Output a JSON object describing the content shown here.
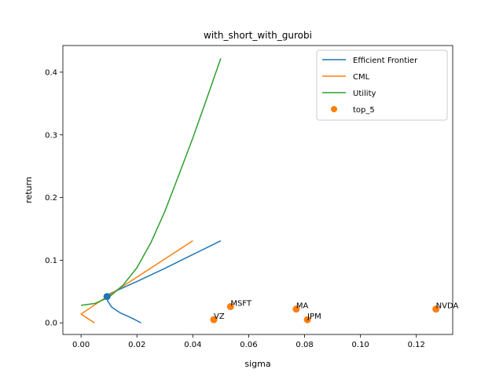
{
  "chart_data": {
    "type": "line",
    "title": "with_short_with_gurobi",
    "xlabel": "sigma",
    "ylabel": "return",
    "xlim": [
      -0.0065,
      0.133
    ],
    "ylim": [
      -0.0185,
      0.4425
    ],
    "xticks": [
      0.0,
      0.02,
      0.04,
      0.06,
      0.08,
      0.1,
      0.12
    ],
    "xtick_labels": [
      "0.00",
      "0.02",
      "0.04",
      "0.06",
      "0.08",
      "0.10",
      "0.12"
    ],
    "yticks": [
      0.0,
      0.1,
      0.2,
      0.3,
      0.4
    ],
    "ytick_labels": [
      "0.0",
      "0.1",
      "0.2",
      "0.3",
      "0.4"
    ],
    "grid": false,
    "legend_position": "top-right",
    "colors": {
      "efficient_frontier": "#1f77b4",
      "cml": "#ff7f0e",
      "utility": "#2ca02c",
      "top_5": "#ff7f0e",
      "tangency": "#1f77b4"
    },
    "series": [
      {
        "name": "Efficient Frontier",
        "kind": "line",
        "points": [
          [
            0.0215,
            0.0
          ],
          [
            0.018,
            0.008
          ],
          [
            0.014,
            0.016
          ],
          [
            0.011,
            0.025
          ],
          [
            0.0095,
            0.035
          ],
          [
            0.0093,
            0.04
          ],
          [
            0.0097,
            0.045
          ],
          [
            0.012,
            0.05
          ],
          [
            0.02,
            0.066
          ],
          [
            0.03,
            0.087
          ],
          [
            0.04,
            0.109
          ],
          [
            0.05,
            0.131
          ]
        ]
      },
      {
        "name": "CML",
        "kind": "line",
        "points": [
          [
            0.0048,
            0.0
          ],
          [
            0.0,
            0.014
          ],
          [
            0.0093,
            0.042
          ],
          [
            0.04,
            0.131
          ]
        ]
      },
      {
        "name": "Utility",
        "kind": "line",
        "points": [
          [
            0.0,
            0.028
          ],
          [
            0.005,
            0.031
          ],
          [
            0.01,
            0.041
          ],
          [
            0.015,
            0.06
          ],
          [
            0.02,
            0.088
          ],
          [
            0.025,
            0.128
          ],
          [
            0.03,
            0.178
          ],
          [
            0.035,
            0.236
          ],
          [
            0.04,
            0.295
          ],
          [
            0.045,
            0.358
          ],
          [
            0.05,
            0.422
          ]
        ]
      },
      {
        "name": "top_5",
        "kind": "scatter",
        "points": [
          {
            "label": "MSFT",
            "x": 0.0535,
            "y": 0.026
          },
          {
            "label": "VZ",
            "x": 0.0475,
            "y": 0.005
          },
          {
            "label": "MA",
            "x": 0.077,
            "y": 0.022
          },
          {
            "label": "JPM",
            "x": 0.081,
            "y": 0.005
          },
          {
            "label": "NVDA",
            "x": 0.127,
            "y": 0.022
          }
        ]
      }
    ],
    "tangency_point": {
      "x": 0.0093,
      "y": 0.042
    }
  }
}
